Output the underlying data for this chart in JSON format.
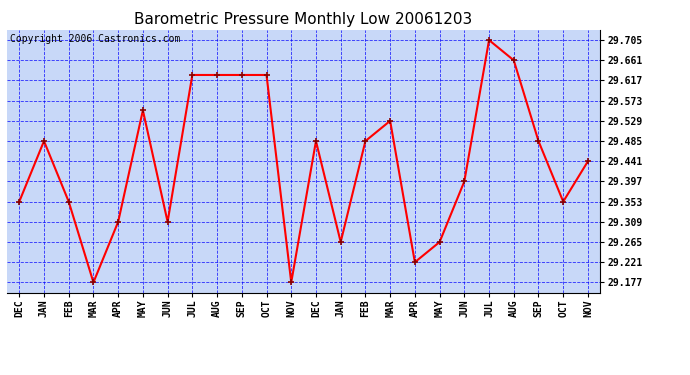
{
  "title": "Barometric Pressure Monthly Low 20061203",
  "copyright": "Copyright 2006 Castronics.com",
  "x_labels": [
    "DEC",
    "JAN",
    "FEB",
    "MAR",
    "APR",
    "MAY",
    "JUN",
    "JUL",
    "AUG",
    "SEP",
    "OCT",
    "NOV",
    "DEC",
    "JAN",
    "FEB",
    "MAR",
    "APR",
    "MAY",
    "JUN",
    "JUL",
    "AUG",
    "SEP",
    "OCT",
    "NOV"
  ],
  "y_values": [
    29.353,
    29.485,
    29.353,
    29.177,
    29.309,
    29.552,
    29.309,
    29.629,
    29.629,
    29.629,
    29.629,
    29.177,
    29.485,
    29.265,
    29.485,
    29.529,
    29.221,
    29.265,
    29.397,
    29.705,
    29.661,
    29.485,
    29.353,
    29.441
  ],
  "y_ticks": [
    29.177,
    29.221,
    29.265,
    29.309,
    29.353,
    29.397,
    29.441,
    29.485,
    29.529,
    29.573,
    29.617,
    29.661,
    29.705
  ],
  "y_min": 29.155,
  "y_max": 29.727,
  "line_color": "red",
  "marker_color": "darkred",
  "bg_color": "#c8d8f8",
  "grid_color": "blue",
  "title_fontsize": 11,
  "copyright_fontsize": 7,
  "fig_width": 6.9,
  "fig_height": 3.75,
  "dpi": 100
}
